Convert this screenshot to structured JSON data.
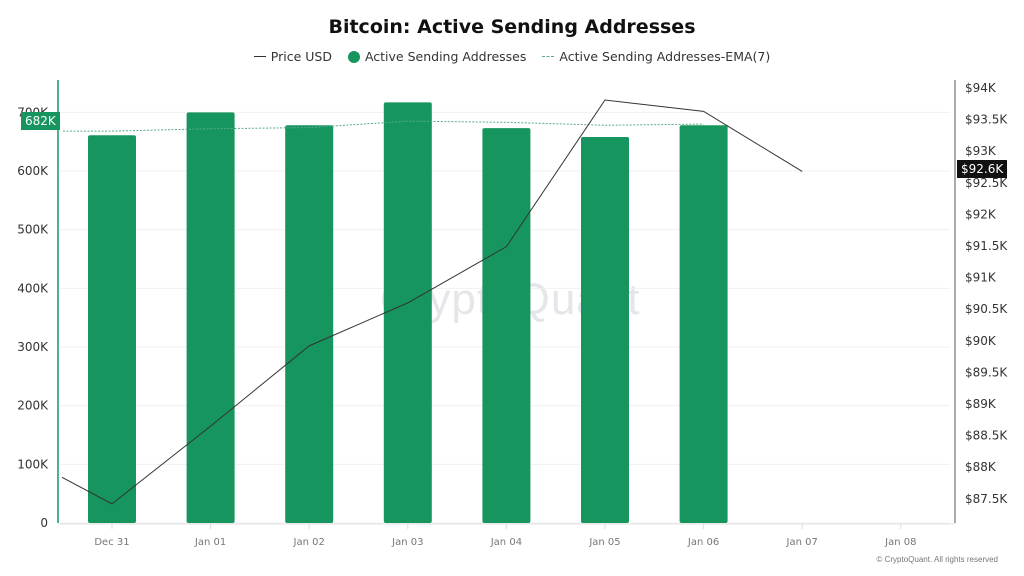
{
  "header": {
    "title": "Bitcoin: Active Sending Addresses"
  },
  "legend": {
    "items": [
      {
        "label": "Price USD",
        "style": "line",
        "color": "#333333"
      },
      {
        "label": "Active Sending Addresses",
        "style": "dot",
        "color": "#16965e"
      },
      {
        "label": "Active Sending Addresses-EMA(7)",
        "style": "dashed",
        "color": "#5aa88a"
      }
    ]
  },
  "axes": {
    "left_ticks": [
      "0",
      "100K",
      "200K",
      "300K",
      "400K",
      "500K",
      "600K",
      "700K"
    ],
    "right_ticks": [
      "$87.5K",
      "$88K",
      "$88.5K",
      "$89K",
      "$89.5K",
      "$90K",
      "$90.5K",
      "$91K",
      "$91.5K",
      "$92K",
      "$92.5K",
      "$93K",
      "$93.5K",
      "$94K"
    ],
    "x_ticks": [
      "Dec 31",
      "Jan 01",
      "Jan 02",
      "Jan 03",
      "Jan 04",
      "Jan 05",
      "Jan 06",
      "Jan 07",
      "Jan 08"
    ]
  },
  "badges": {
    "left_value": "682K",
    "right_value": "$92.6K"
  },
  "watermark": "CryptoQuant",
  "footer": "© CryptoQuant. All rights reserved",
  "colors": {
    "bar": "#16965e",
    "price_line": "#333333",
    "ema_line": "#5aa88a",
    "left_axis": "#16965e"
  },
  "chart_data": {
    "type": "bar",
    "title": "Bitcoin: Active Sending Addresses",
    "categories": [
      "Dec 31",
      "Jan 01",
      "Jan 02",
      "Jan 03",
      "Jan 04",
      "Jan 05",
      "Jan 06",
      "Jan 07",
      "Jan 08"
    ],
    "series": [
      {
        "name": "Active Sending Addresses",
        "type": "bar",
        "axis": "left",
        "values": [
          661000,
          700000,
          678000,
          717000,
          673000,
          658000,
          678000,
          null,
          null
        ]
      },
      {
        "name": "Active Sending Addresses-EMA(7)",
        "type": "line",
        "axis": "left",
        "values": [
          668000,
          672000,
          674000,
          685000,
          683000,
          678000,
          680000,
          null,
          null
        ]
      },
      {
        "name": "Price USD",
        "type": "line",
        "axis": "right",
        "values": [
          87420,
          88650,
          89920,
          90600,
          91490,
          93810,
          93630,
          92680,
          null
        ],
        "prior_point": 87840
      }
    ],
    "xlabel": "",
    "ylabel_left": "Active Sending Addresses",
    "ylabel_right": "Price USD",
    "ylim_left": [
      0,
      750000
    ],
    "ylim_right": [
      87500,
      94000
    ],
    "grid": true,
    "legend_position": "top",
    "annotations": [
      "682K",
      "$92.6K"
    ]
  }
}
